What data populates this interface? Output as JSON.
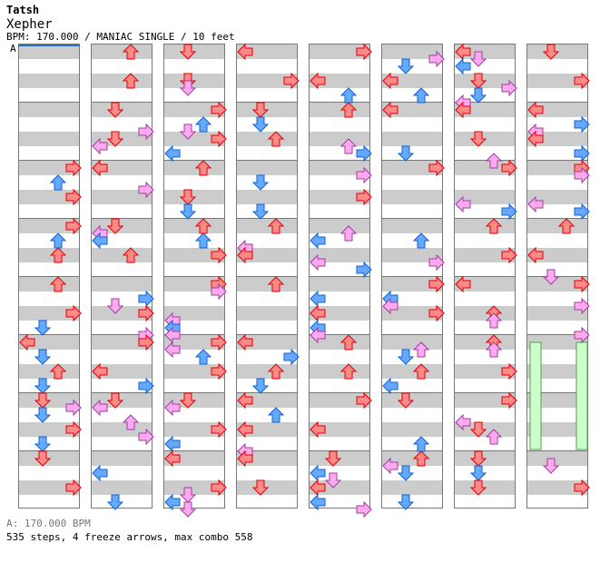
{
  "header": {
    "artist": "Tatsh",
    "title": "Xepher",
    "info": "BPM: 170.000 / MANIAC SINGLE / 10 feet",
    "marker": "A"
  },
  "footer": {
    "bpm": "A: 170.000 BPM",
    "stats": "535 steps, 4 freeze arrows, max combo 558"
  },
  "colors": {
    "quarter": "#ff8888",
    "quarter_edge": "#dd0000",
    "eighth": "#66aaff",
    "eighth_edge": "#1060d0",
    "sixteenth": "#ffaaee",
    "sixteenth_edge": "#a03ca0",
    "freeze": "#ccffcc",
    "freeze_edge": "#50a050"
  },
  "columns": 8,
  "measures_per_column": 8
}
